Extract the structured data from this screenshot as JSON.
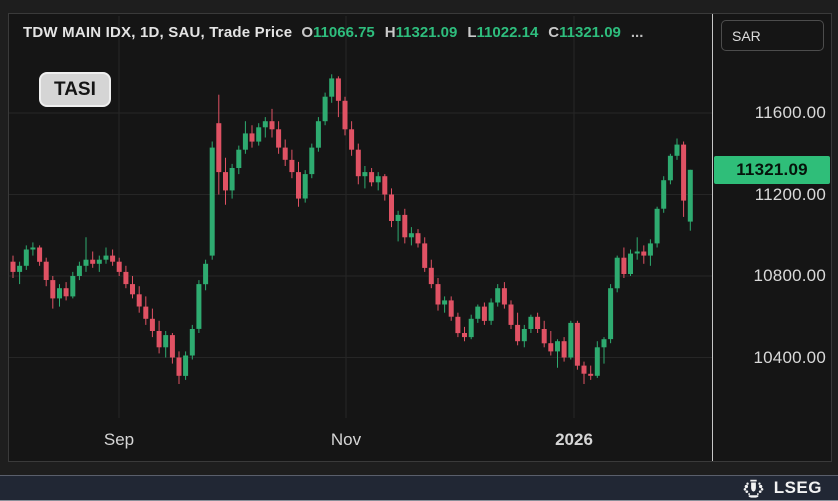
{
  "header": {
    "title": "TDW MAIN IDX, 1D, SAU, Trade Price",
    "ohlc": [
      {
        "label": "O",
        "value": "11066.75"
      },
      {
        "label": "H",
        "value": "11321.09"
      },
      {
        "label": "L",
        "value": "11022.14"
      },
      {
        "label": "C",
        "value": "11321.09"
      }
    ],
    "ellipsis": "..."
  },
  "legend_badge": "TASI",
  "price_axis": {
    "currency": "SAR",
    "ticks": [
      {
        "label": "11600.00",
        "price": 11600
      },
      {
        "label": "11200.00",
        "price": 11200
      },
      {
        "label": "10800.00",
        "price": 10800
      },
      {
        "label": "10400.00",
        "price": 10400
      }
    ],
    "last_price_badge": {
      "label": "11321.09",
      "price": 11321.09
    }
  },
  "time_axis": {
    "labels": [
      {
        "label": "Sep",
        "x": 110,
        "bold": false
      },
      {
        "label": "Nov",
        "x": 337,
        "bold": false
      },
      {
        "label": "2026",
        "x": 565,
        "bold": true
      }
    ]
  },
  "footer": {
    "brand": "LSEG"
  },
  "colors": {
    "up": "#2eab70",
    "down": "#e05264",
    "badge": "#2fbe79",
    "grid": "#262626"
  },
  "chart_data": {
    "type": "candlestick",
    "title": "TDW MAIN IDX, 1D, SAU, Trade Price",
    "instrument": "TASI",
    "interval": "1D",
    "currency": "SAR",
    "last_ohlc": {
      "open": 11066.75,
      "high": 11321.09,
      "low": 11022.14,
      "close": 11321.09
    },
    "y_ticks": [
      11600,
      11200,
      10800,
      10400
    ],
    "y_range_visible": [
      10250,
      11820
    ],
    "x_tick_labels": [
      "Sep",
      "Nov",
      "2026"
    ],
    "legend_position": "top-left",
    "grid": true,
    "candles_ohlc": [
      [
        10870,
        10900,
        10790,
        10820
      ],
      [
        10820,
        10870,
        10760,
        10850
      ],
      [
        10850,
        10950,
        10830,
        10930
      ],
      [
        10930,
        10965,
        10900,
        10940
      ],
      [
        10940,
        10950,
        10850,
        10870
      ],
      [
        10870,
        10890,
        10750,
        10780
      ],
      [
        10780,
        10800,
        10640,
        10690
      ],
      [
        10690,
        10760,
        10650,
        10740
      ],
      [
        10740,
        10770,
        10680,
        10700
      ],
      [
        10700,
        10820,
        10690,
        10800
      ],
      [
        10800,
        10870,
        10780,
        10850
      ],
      [
        10850,
        10990,
        10820,
        10880
      ],
      [
        10880,
        10920,
        10840,
        10860
      ],
      [
        10860,
        10900,
        10820,
        10880
      ],
      [
        10880,
        10940,
        10860,
        10900
      ],
      [
        10900,
        10930,
        10850,
        10870
      ],
      [
        10870,
        10890,
        10800,
        10820
      ],
      [
        10820,
        10850,
        10740,
        10760
      ],
      [
        10760,
        10800,
        10690,
        10710
      ],
      [
        10710,
        10750,
        10620,
        10650
      ],
      [
        10650,
        10700,
        10560,
        10590
      ],
      [
        10590,
        10640,
        10500,
        10530
      ],
      [
        10530,
        10580,
        10420,
        10450
      ],
      [
        10450,
        10530,
        10400,
        10510
      ],
      [
        10510,
        10520,
        10370,
        10400
      ],
      [
        10400,
        10430,
        10270,
        10310
      ],
      [
        10310,
        10430,
        10290,
        10410
      ],
      [
        10410,
        10560,
        10390,
        10540
      ],
      [
        10540,
        10780,
        10520,
        10760
      ],
      [
        10760,
        10880,
        10730,
        10860
      ],
      [
        10900,
        11460,
        10880,
        11430
      ],
      [
        11550,
        11690,
        11200,
        11310
      ],
      [
        11310,
        11380,
        11150,
        11220
      ],
      [
        11220,
        11350,
        11180,
        11330
      ],
      [
        11330,
        11440,
        11300,
        11420
      ],
      [
        11420,
        11560,
        11400,
        11500
      ],
      [
        11500,
        11540,
        11430,
        11460
      ],
      [
        11460,
        11550,
        11440,
        11530
      ],
      [
        11530,
        11580,
        11480,
        11560
      ],
      [
        11560,
        11620,
        11480,
        11520
      ],
      [
        11520,
        11560,
        11400,
        11430
      ],
      [
        11430,
        11470,
        11340,
        11370
      ],
      [
        11370,
        11420,
        11280,
        11310
      ],
      [
        11310,
        11360,
        11140,
        11180
      ],
      [
        11180,
        11320,
        11160,
        11300
      ],
      [
        11300,
        11450,
        11280,
        11430
      ],
      [
        11430,
        11580,
        11410,
        11560
      ],
      [
        11560,
        11700,
        11540,
        11680
      ],
      [
        11680,
        11790,
        11650,
        11770
      ],
      [
        11770,
        11780,
        11580,
        11660
      ],
      [
        11660,
        11680,
        11490,
        11520
      ],
      [
        11520,
        11560,
        11390,
        11420
      ],
      [
        11420,
        11450,
        11250,
        11290
      ],
      [
        11290,
        11340,
        11230,
        11310
      ],
      [
        11310,
        11330,
        11240,
        11260
      ],
      [
        11260,
        11310,
        11220,
        11290
      ],
      [
        11290,
        11300,
        11170,
        11200
      ],
      [
        11200,
        11230,
        11040,
        11070
      ],
      [
        11070,
        11120,
        10970,
        11100
      ],
      [
        11100,
        11130,
        10960,
        10990
      ],
      [
        10990,
        11040,
        10950,
        11010
      ],
      [
        11010,
        11030,
        10940,
        10960
      ],
      [
        10960,
        10990,
        10820,
        10840
      ],
      [
        10840,
        10880,
        10740,
        10760
      ],
      [
        10760,
        10790,
        10630,
        10660
      ],
      [
        10660,
        10700,
        10620,
        10680
      ],
      [
        10680,
        10700,
        10580,
        10600
      ],
      [
        10600,
        10620,
        10500,
        10520
      ],
      [
        10520,
        10550,
        10480,
        10500
      ],
      [
        10500,
        10610,
        10490,
        10590
      ],
      [
        10590,
        10660,
        10570,
        10650
      ],
      [
        10650,
        10670,
        10560,
        10580
      ],
      [
        10580,
        10690,
        10560,
        10670
      ],
      [
        10670,
        10760,
        10650,
        10740
      ],
      [
        10740,
        10770,
        10640,
        10660
      ],
      [
        10660,
        10680,
        10540,
        10560
      ],
      [
        10560,
        10620,
        10460,
        10480
      ],
      [
        10480,
        10560,
        10450,
        10540
      ],
      [
        10540,
        10610,
        10520,
        10600
      ],
      [
        10600,
        10620,
        10520,
        10540
      ],
      [
        10540,
        10580,
        10450,
        10470
      ],
      [
        10470,
        10530,
        10410,
        10430
      ],
      [
        10430,
        10490,
        10350,
        10480
      ],
      [
        10480,
        10500,
        10380,
        10400
      ],
      [
        10400,
        10580,
        10390,
        10570
      ],
      [
        10570,
        10580,
        10340,
        10360
      ],
      [
        10360,
        10380,
        10270,
        10320
      ],
      [
        10320,
        10360,
        10290,
        10310
      ],
      [
        10310,
        10480,
        10300,
        10450
      ],
      [
        10450,
        10500,
        10370,
        10490
      ],
      [
        10490,
        10760,
        10470,
        10740
      ],
      [
        10740,
        10900,
        10720,
        10890
      ],
      [
        10890,
        10940,
        10790,
        10810
      ],
      [
        10810,
        10930,
        10800,
        10910
      ],
      [
        10910,
        10990,
        10880,
        10920
      ],
      [
        10920,
        10950,
        10860,
        10900
      ],
      [
        10900,
        10980,
        10850,
        10960
      ],
      [
        10960,
        11140,
        10940,
        11130
      ],
      [
        11130,
        11290,
        11110,
        11270
      ],
      [
        11270,
        11400,
        11250,
        11390
      ],
      [
        11390,
        11475,
        11370,
        11445
      ],
      [
        11445,
        11460,
        11090,
        11170
      ],
      [
        11066.75,
        11321.09,
        11022.14,
        11321.09
      ]
    ]
  }
}
